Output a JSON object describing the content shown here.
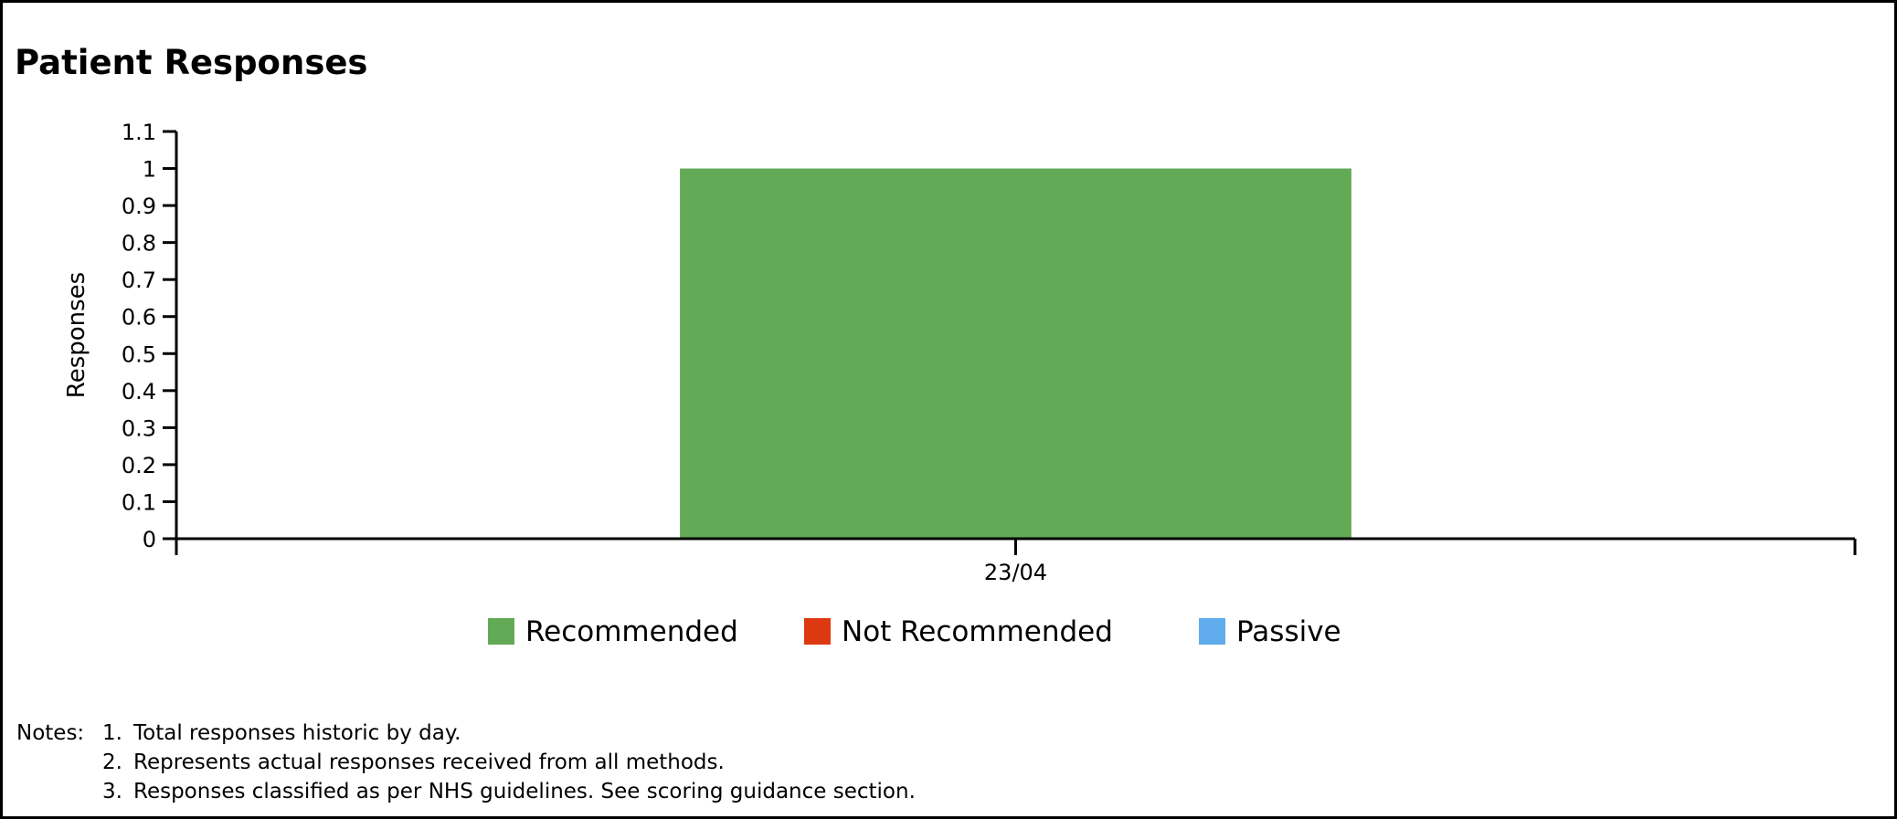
{
  "title": "Patient Responses",
  "chart_data": {
    "type": "bar",
    "stacked": true,
    "categories": [
      "23/04"
    ],
    "series": [
      {
        "name": "Recommended",
        "color": "#63aa56",
        "values": [
          1
        ]
      },
      {
        "name": "Not Recommended",
        "color": "#dc3912",
        "values": [
          0
        ]
      },
      {
        "name": "Passive",
        "color": "#60acec",
        "values": [
          0
        ]
      }
    ],
    "ylabel": "Responses",
    "xlabel": "",
    "ylim": [
      0,
      1.1
    ],
    "yticks": [
      0,
      0.1,
      0.2,
      0.3,
      0.4,
      0.5,
      0.6,
      0.7,
      0.8,
      0.9,
      1,
      1.1
    ],
    "grid": false,
    "legend_position": "bottom"
  },
  "notes": {
    "label": "Notes:",
    "items": [
      {
        "num": "1.",
        "text": "Total responses historic by day."
      },
      {
        "num": "2.",
        "text": "Represents actual responses received from all methods."
      },
      {
        "num": "3.",
        "text": "Responses classified as per NHS guidelines. See scoring guidance section."
      }
    ]
  }
}
